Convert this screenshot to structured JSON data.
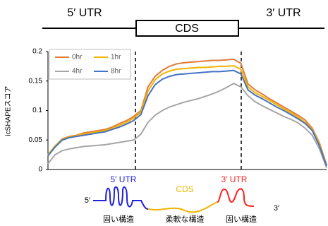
{
  "gene_map": {
    "left": "5′ UTR",
    "middle": "CDS",
    "right": "3′ UTR"
  },
  "chart_data": {
    "type": "line",
    "ylabel": "icSHAPEスコア",
    "ylim": [
      0,
      0.2
    ],
    "yticks": [
      0,
      0.05,
      0.1,
      0.15,
      0.2
    ],
    "series": [
      {
        "name": "0hr",
        "color": "#e07b39",
        "values": [
          0.025,
          0.04,
          0.052,
          0.056,
          0.058,
          0.062,
          0.064,
          0.066,
          0.068,
          0.072,
          0.078,
          0.083,
          0.09,
          0.1,
          0.14,
          0.158,
          0.168,
          0.175,
          0.179,
          0.181,
          0.182,
          0.183,
          0.184,
          0.185,
          0.185,
          0.186,
          0.187,
          0.18,
          0.145,
          0.135,
          0.128,
          0.12,
          0.113,
          0.106,
          0.099,
          0.092,
          0.084,
          0.07,
          0.045,
          0.008
        ]
      },
      {
        "name": "1hr",
        "color": "#f0b400",
        "values": [
          0.025,
          0.04,
          0.051,
          0.055,
          0.057,
          0.06,
          0.062,
          0.064,
          0.066,
          0.07,
          0.075,
          0.08,
          0.087,
          0.097,
          0.133,
          0.152,
          0.162,
          0.167,
          0.17,
          0.171,
          0.172,
          0.173,
          0.173,
          0.174,
          0.175,
          0.175,
          0.176,
          0.17,
          0.14,
          0.13,
          0.124,
          0.117,
          0.11,
          0.103,
          0.096,
          0.089,
          0.08,
          0.068,
          0.043,
          0.007
        ]
      },
      {
        "name": "4hr",
        "color": "#a6a6a6",
        "values": [
          0.01,
          0.025,
          0.032,
          0.035,
          0.037,
          0.039,
          0.04,
          0.041,
          0.042,
          0.044,
          0.046,
          0.048,
          0.05,
          0.06,
          0.08,
          0.092,
          0.1,
          0.106,
          0.11,
          0.114,
          0.117,
          0.12,
          0.124,
          0.128,
          0.133,
          0.139,
          0.146,
          0.14,
          0.125,
          0.115,
          0.108,
          0.102,
          0.096,
          0.09,
          0.085,
          0.079,
          0.07,
          0.058,
          0.035,
          0.003
        ]
      },
      {
        "name": "8hr",
        "color": "#4472c4",
        "values": [
          0.023,
          0.038,
          0.05,
          0.054,
          0.056,
          0.058,
          0.06,
          0.062,
          0.064,
          0.068,
          0.072,
          0.077,
          0.083,
          0.093,
          0.125,
          0.144,
          0.153,
          0.158,
          0.161,
          0.162,
          0.163,
          0.164,
          0.165,
          0.166,
          0.166,
          0.167,
          0.168,
          0.162,
          0.135,
          0.126,
          0.12,
          0.113,
          0.106,
          0.1,
          0.093,
          0.086,
          0.078,
          0.066,
          0.04,
          0.006
        ]
      }
    ]
  },
  "structure_diagram": {
    "utr5_label": "5′ UTR",
    "cds_label": "CDS",
    "utr3_label": "3′ UTR",
    "end5": "5′",
    "end3": "3′",
    "caption_left": "固い構造",
    "caption_middle": "柔軟な構造",
    "caption_right": "固い構造"
  }
}
